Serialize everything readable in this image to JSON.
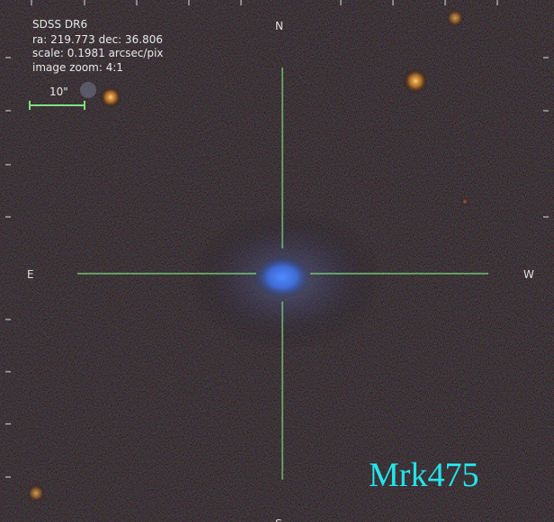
{
  "header": {
    "lines": [
      "SDSS DR6",
      "ra: 219.773 dec: 36.806",
      "scale: 0.1981 arcsec/pix",
      "image zoom: 4:1"
    ]
  },
  "scale_bar": {
    "label": "10\""
  },
  "compass": {
    "north": "N",
    "east": "E",
    "west": "W",
    "south": "S"
  },
  "object": {
    "label": "Mrk475"
  }
}
